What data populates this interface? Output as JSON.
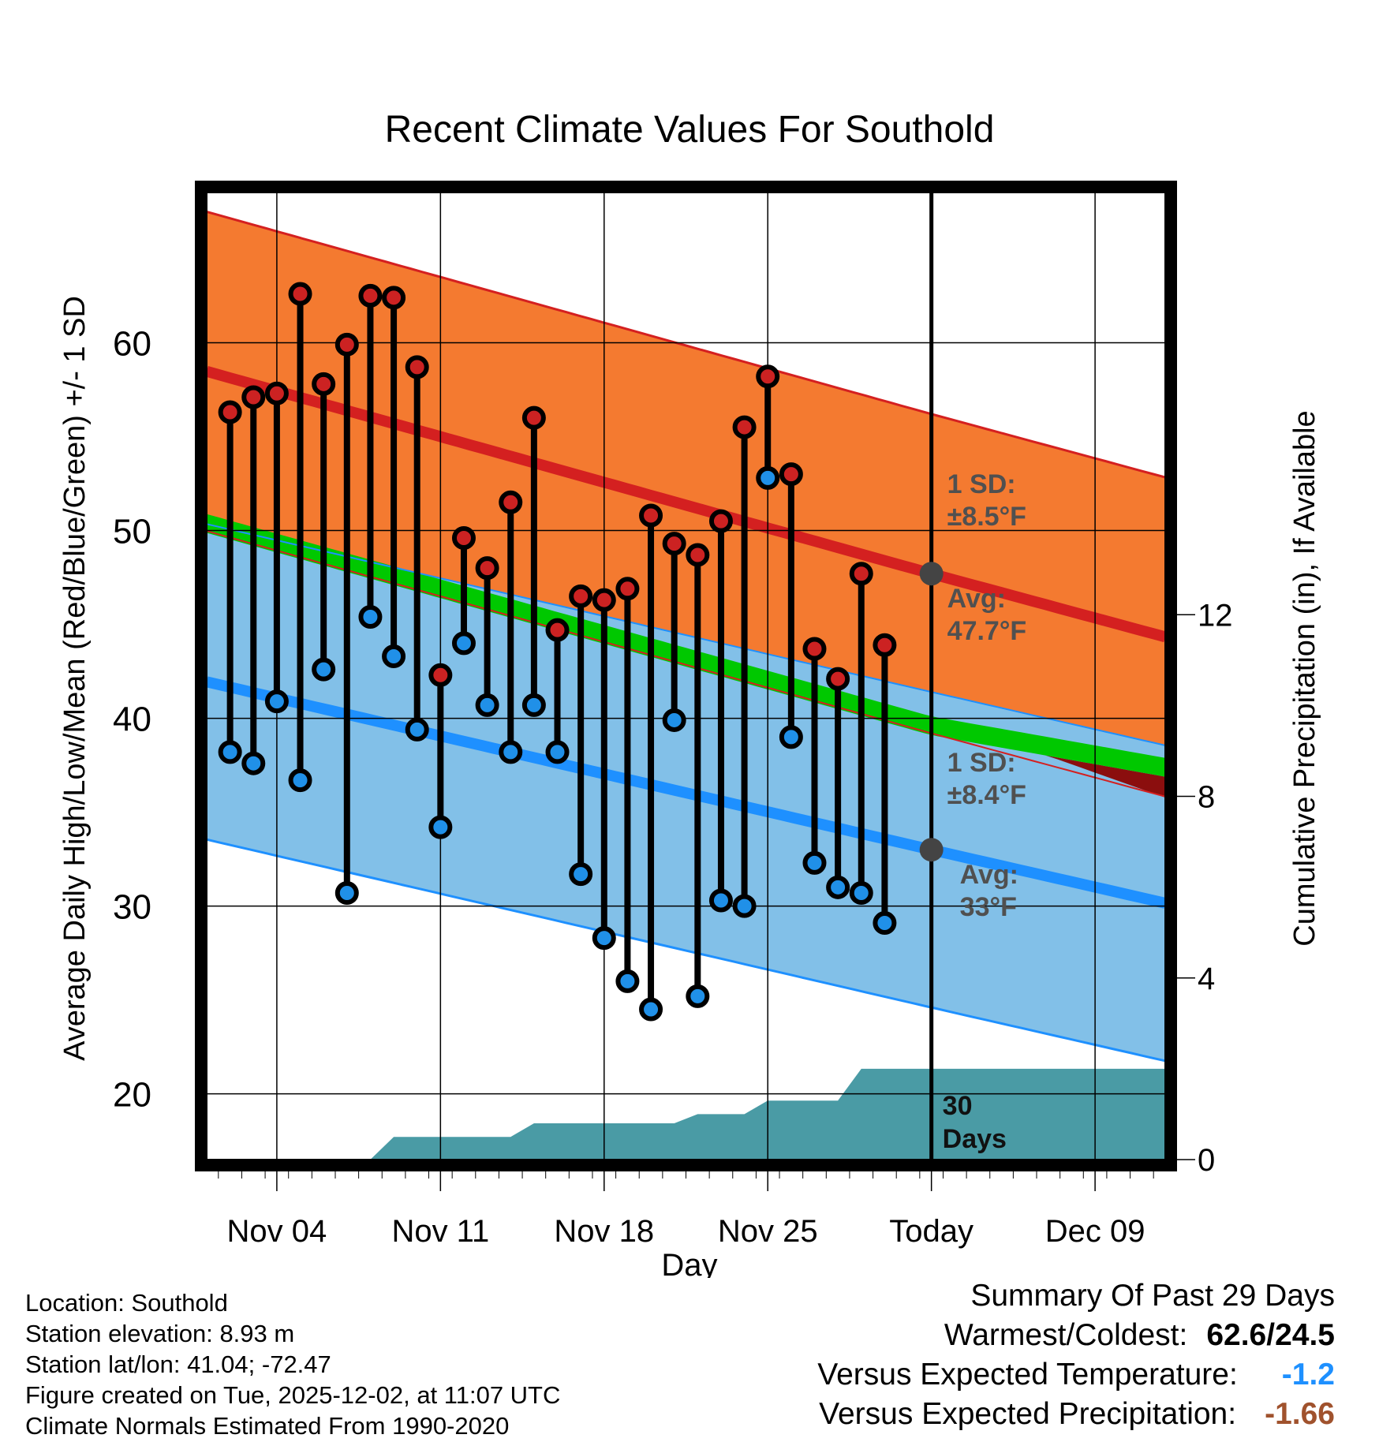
{
  "chart_data": {
    "type": "line",
    "title": "Recent Climate Values For Southold",
    "xlabel": "Day",
    "ylabel": "Average Daily High/Low/Mean (Red/Blue/Green) +/- 1 SD",
    "y2label": "Cumulative Precipitation (in), If Available",
    "ylim": [
      16.5,
      68
    ],
    "y2lim": [
      0,
      21.3
    ],
    "xlim": [
      -0.5,
      40.5
    ],
    "yticks": [
      20,
      30,
      40,
      50,
      60
    ],
    "yticklabels": [
      "20",
      "30",
      "40",
      "50",
      "60"
    ],
    "y2ticks": [
      0,
      4,
      8,
      12
    ],
    "y2ticklabels": [
      "0",
      "4",
      "8",
      "12"
    ],
    "xticks": [
      2.5,
      9.5,
      16.5,
      23.5,
      30.5,
      37.5
    ],
    "xticklabels": [
      "Nov 04",
      "Nov 11",
      "Nov 18",
      "Nov 25",
      "Today",
      "Dec 09"
    ],
    "today_x": 30.5,
    "days": [
      1,
      2,
      3,
      4,
      5,
      6,
      7,
      8,
      9,
      10,
      11,
      12,
      13,
      14,
      15,
      16,
      17,
      18,
      19,
      20,
      21,
      22,
      23,
      24,
      25,
      26,
      27,
      28,
      29
    ],
    "highs": [
      56.3,
      57.1,
      57.3,
      62.6,
      57.8,
      59.9,
      62.5,
      62.4,
      58.7,
      42.3,
      49.6,
      48.0,
      51.5,
      56.0,
      44.7,
      46.5,
      46.3,
      46.9,
      50.8,
      49.3,
      48.7,
      50.5,
      55.5,
      58.2,
      53.0,
      43.7,
      42.1,
      47.7,
      43.9
    ],
    "lows": [
      38.2,
      37.6,
      40.9,
      36.7,
      42.6,
      30.7,
      45.4,
      43.3,
      39.4,
      34.2,
      44.0,
      40.7,
      38.2,
      40.7,
      38.2,
      31.7,
      28.3,
      26.0,
      24.5,
      39.9,
      25.2,
      30.3,
      30.0,
      52.8,
      39.0,
      32.3,
      31.0,
      30.7,
      29.1
    ],
    "normals": {
      "x": [
        0,
        30.5,
        40
      ],
      "high_mean": [
        58.3,
        47.7,
        44.5
      ],
      "high_sd": 8.5,
      "low_mean": [
        41.8,
        33.0,
        30.3
      ],
      "low_sd": 8.4,
      "avg_mean": [
        50.2,
        39.6,
        37.5
      ],
      "avg_band": 0.5,
      "actual_mean_line": [
        51.0,
        40.2,
        36.0
      ]
    },
    "precip_cumulative": {
      "x": [
        -0.5,
        6.5,
        7.5,
        8.5,
        12.5,
        13.5,
        17.5,
        19.5,
        20.5,
        22.5,
        23.5,
        24.5,
        26.5,
        27.5,
        40.5
      ],
      "y": [
        0.0,
        0.0,
        0.5,
        0.5,
        0.5,
        0.8,
        0.8,
        0.8,
        1.0,
        1.0,
        1.3,
        1.3,
        1.3,
        2.0,
        2.0
      ]
    },
    "annotations": {
      "high_sd_label": "1 SD:",
      "high_sd_value": "±8.5°F",
      "high_avg_label": "Avg:",
      "high_avg_value": "47.7°F",
      "low_sd_label": "1 SD:",
      "low_sd_value": "±8.4°F",
      "low_avg_label": "Avg:",
      "low_avg_value": "33°F",
      "days_value": "30",
      "days_label": "Days"
    },
    "colors": {
      "high_band": "#f47a30",
      "high_line": "#d42020",
      "low_band": "#82c0e8",
      "low_line": "#1e90ff",
      "avg_band": "#00c800",
      "dark_band": "#8b0e0e",
      "precip": "#4a9ba5",
      "high_dot": "#cc2222",
      "low_dot": "#2090e8",
      "annotation": "#505050"
    }
  },
  "info": {
    "location": "Location: Southold",
    "elevation": "Station elevation: 8.93 m",
    "latlon": "Station lat/lon: 41.04; -72.47",
    "created": "Figure created on Tue, 2025-12-02, at 11:07 UTC",
    "normals": "Climate Normals Estimated From 1990-2020"
  },
  "summary": {
    "title": "Summary Of Past 29 Days",
    "warm_label": "Warmest/Coldest:",
    "warm_value": "62.6/24.5",
    "temp_label": "Versus Expected Temperature:",
    "temp_value": "-1.2",
    "precip_label": "Versus Expected Precipitation:",
    "precip_value": "-1.66"
  }
}
